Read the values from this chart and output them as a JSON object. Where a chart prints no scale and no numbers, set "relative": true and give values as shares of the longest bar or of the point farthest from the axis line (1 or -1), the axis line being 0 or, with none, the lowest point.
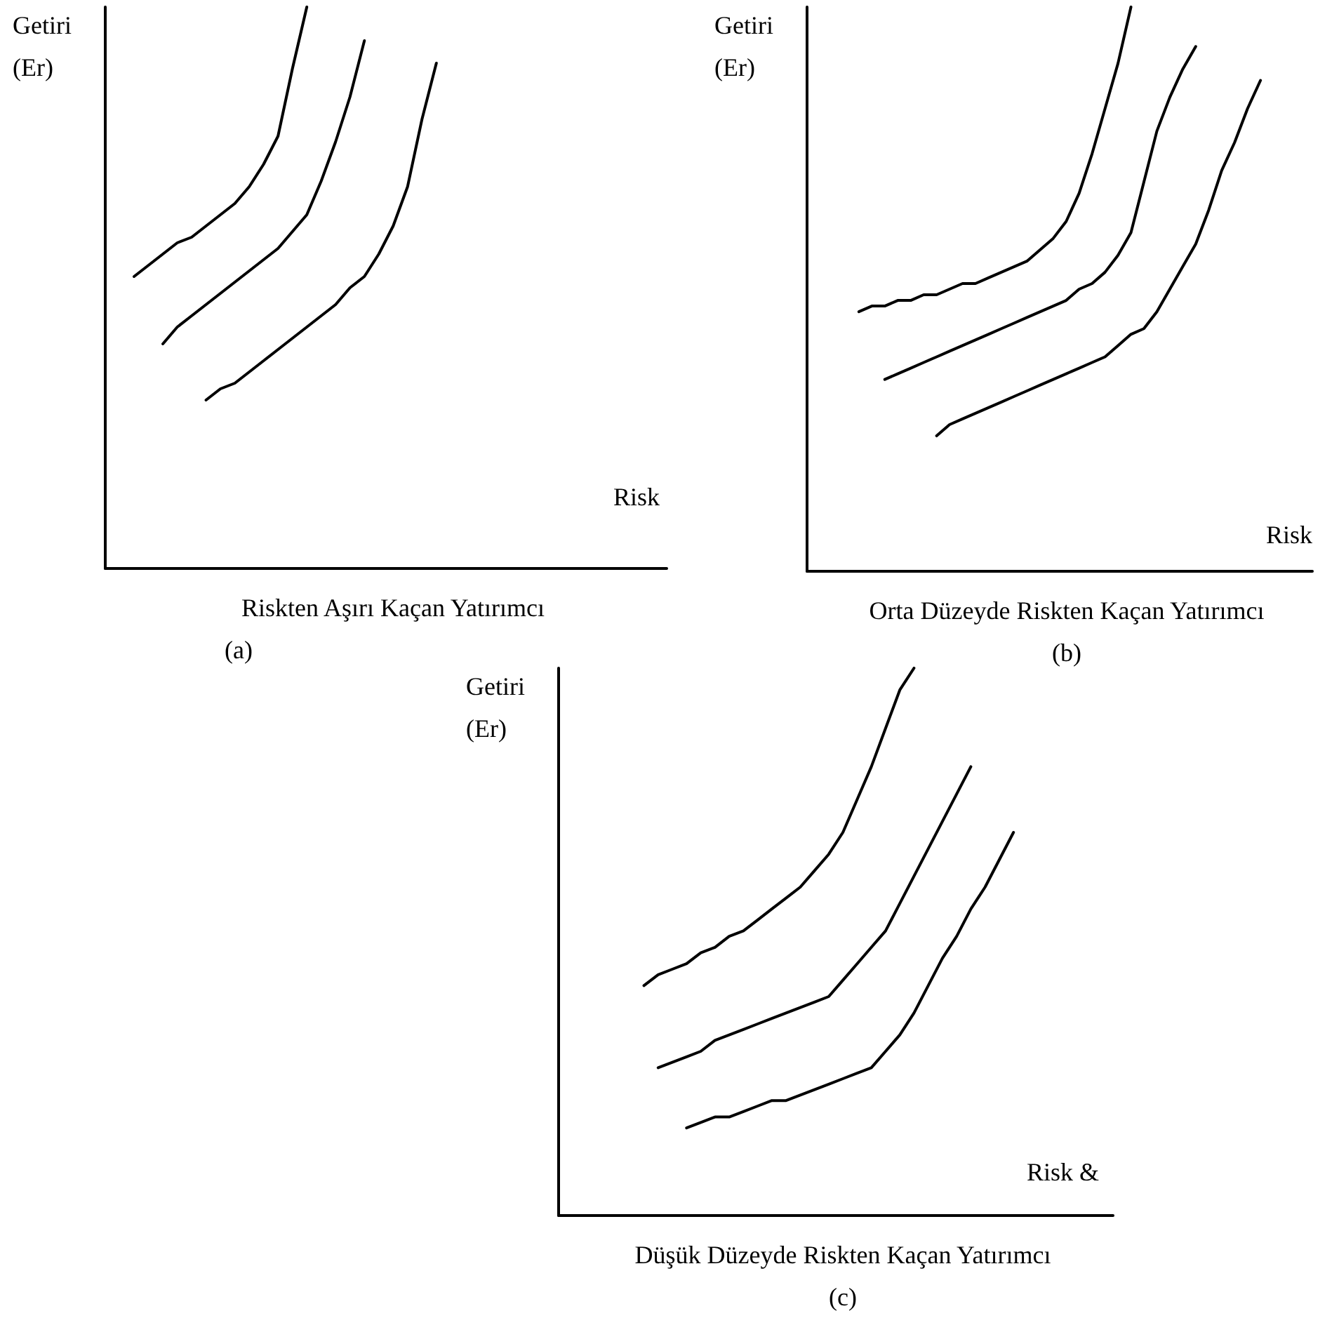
{
  "chart_data": [
    {
      "type": "line",
      "title": "Riskten Aşırı Kaçan Yatırımcı",
      "subtitle": "(a)",
      "ylabel": "Getiri\n(Er)",
      "xlabel": "Risk",
      "relative": true,
      "marker": "none",
      "categories": [
        null,
        null,
        null,
        null,
        null,
        null,
        null,
        null,
        null,
        null,
        null,
        null,
        null,
        null,
        null,
        null,
        null,
        null,
        null,
        null,
        null,
        null,
        null,
        null,
        null,
        null,
        null,
        null,
        null,
        null,
        null,
        null,
        null,
        null,
        null,
        null,
        null,
        null,
        null,
        null
      ],
      "series": [
        {
          "color": "#000000",
          "values": [
            null,
            null,
            0.52,
            0.54,
            0.56,
            0.58,
            0.59,
            0.61,
            0.63,
            0.65,
            0.68,
            0.72,
            0.77,
            0.89,
            1,
            null,
            null,
            null,
            null,
            null,
            null,
            null,
            null,
            null,
            null,
            null,
            null,
            null,
            null,
            null,
            null,
            null,
            null,
            null,
            null,
            null,
            null,
            null,
            null,
            null
          ]
        },
        {
          "color": "#000000",
          "values": [
            null,
            null,
            null,
            null,
            0.4,
            0.43,
            0.45,
            0.47,
            0.49,
            0.51,
            0.53,
            0.55,
            0.57,
            0.6,
            0.63,
            0.69,
            0.76,
            0.84,
            0.94,
            null,
            null,
            null,
            null,
            null,
            null,
            null,
            null,
            null,
            null,
            null,
            null,
            null,
            null,
            null,
            null,
            null,
            null,
            null,
            null,
            null
          ]
        },
        {
          "color": "#000000",
          "values": [
            null,
            null,
            null,
            null,
            null,
            null,
            null,
            0.3,
            0.32,
            0.33,
            0.35,
            0.37,
            0.39,
            0.41,
            0.43,
            0.45,
            0.47,
            0.5,
            0.52,
            0.56,
            0.61,
            0.68,
            0.8,
            0.9,
            null,
            null,
            null,
            null,
            null,
            null,
            null,
            null,
            null,
            null,
            null,
            null,
            null,
            null,
            null,
            null
          ]
        }
      ]
    },
    {
      "type": "line",
      "title": "Orta Düzeyde Riskten Kaçan Yatırımcı",
      "subtitle": "(b)",
      "ylabel": "Getiri\n(Er)",
      "xlabel": "Risk",
      "relative": true,
      "marker": "none",
      "categories": [
        null,
        null,
        null,
        null,
        null,
        null,
        null,
        null,
        null,
        null,
        null,
        null,
        null,
        null,
        null,
        null,
        null,
        null,
        null,
        null,
        null,
        null,
        null,
        null,
        null,
        null,
        null,
        null,
        null,
        null,
        null,
        null,
        null,
        null,
        null,
        null,
        null,
        null,
        null,
        null
      ],
      "series": [
        {
          "color": "#000000",
          "values": [
            null,
            null,
            null,
            null,
            0.46,
            0.47,
            0.47,
            0.48,
            0.48,
            0.49,
            0.49,
            0.5,
            0.51,
            0.51,
            0.52,
            0.53,
            0.54,
            0.55,
            0.57,
            0.59,
            0.62,
            0.67,
            0.74,
            0.82,
            0.9,
            1,
            null,
            null,
            null,
            null,
            null,
            null,
            null,
            null,
            null,
            null,
            null,
            null,
            null,
            null
          ]
        },
        {
          "color": "#000000",
          "values": [
            null,
            null,
            null,
            null,
            null,
            null,
            0.34,
            0.35,
            0.36,
            0.37,
            0.38,
            0.39,
            0.4,
            0.41,
            0.42,
            0.43,
            0.44,
            0.45,
            0.46,
            0.47,
            0.48,
            0.5,
            0.51,
            0.53,
            0.56,
            0.6,
            0.69,
            0.78,
            0.84,
            0.89,
            0.93,
            null,
            null,
            null,
            null,
            null,
            null,
            null,
            null,
            null
          ]
        },
        {
          "color": "#000000",
          "values": [
            null,
            null,
            null,
            null,
            null,
            null,
            null,
            null,
            null,
            null,
            0.24,
            0.26,
            0.27,
            0.28,
            0.29,
            0.3,
            0.31,
            0.32,
            0.33,
            0.34,
            0.35,
            0.36,
            0.37,
            0.38,
            0.4,
            0.42,
            0.43,
            0.46,
            0.5,
            0.54,
            0.58,
            0.64,
            0.71,
            0.76,
            0.82,
            0.87,
            null,
            null,
            null,
            null
          ]
        }
      ]
    },
    {
      "type": "line",
      "title": "Düşük Düzeyde Riskten Kaçan Yatırımcı",
      "subtitle": "(c)",
      "ylabel": "Getiri\n(Er)",
      "xlabel": "Risk &",
      "relative": true,
      "marker": "none",
      "categories": [
        null,
        null,
        null,
        null,
        null,
        null,
        null,
        null,
        null,
        null,
        null,
        null,
        null,
        null,
        null,
        null,
        null,
        null,
        null,
        null,
        null,
        null,
        null,
        null,
        null,
        null,
        null,
        null,
        null,
        null,
        null,
        null,
        null,
        null,
        null,
        null,
        null,
        null,
        null,
        null
      ],
      "series": [
        {
          "color": "#000000",
          "values": [
            null,
            null,
            null,
            null,
            null,
            null,
            0.42,
            0.44,
            0.45,
            0.46,
            0.48,
            0.49,
            0.51,
            0.52,
            0.54,
            0.56,
            0.58,
            0.6,
            0.63,
            0.66,
            0.7,
            0.76,
            0.82,
            0.89,
            0.96,
            1,
            null,
            null,
            null,
            null,
            null,
            null,
            null,
            null,
            null,
            null,
            null,
            null,
            null,
            null
          ]
        },
        {
          "color": "#000000",
          "values": [
            null,
            null,
            null,
            null,
            null,
            null,
            null,
            0.27,
            0.28,
            0.29,
            0.3,
            0.32,
            0.33,
            0.34,
            0.35,
            0.36,
            0.37,
            0.38,
            0.39,
            0.4,
            0.43,
            0.46,
            0.49,
            0.52,
            0.57,
            0.62,
            0.67,
            0.72,
            0.77,
            0.82,
            null,
            null,
            null,
            null,
            null,
            null,
            null,
            null,
            null,
            null
          ]
        },
        {
          "color": "#000000",
          "values": [
            null,
            null,
            null,
            null,
            null,
            null,
            null,
            null,
            null,
            0.16,
            0.17,
            0.18,
            0.18,
            0.19,
            0.2,
            0.21,
            0.21,
            0.22,
            0.23,
            0.24,
            0.25,
            0.26,
            0.27,
            0.3,
            0.33,
            0.37,
            0.42,
            0.47,
            0.51,
            0.56,
            0.6,
            0.65,
            0.7,
            null,
            null,
            null,
            null,
            null,
            null,
            null
          ]
        }
      ]
    }
  ]
}
